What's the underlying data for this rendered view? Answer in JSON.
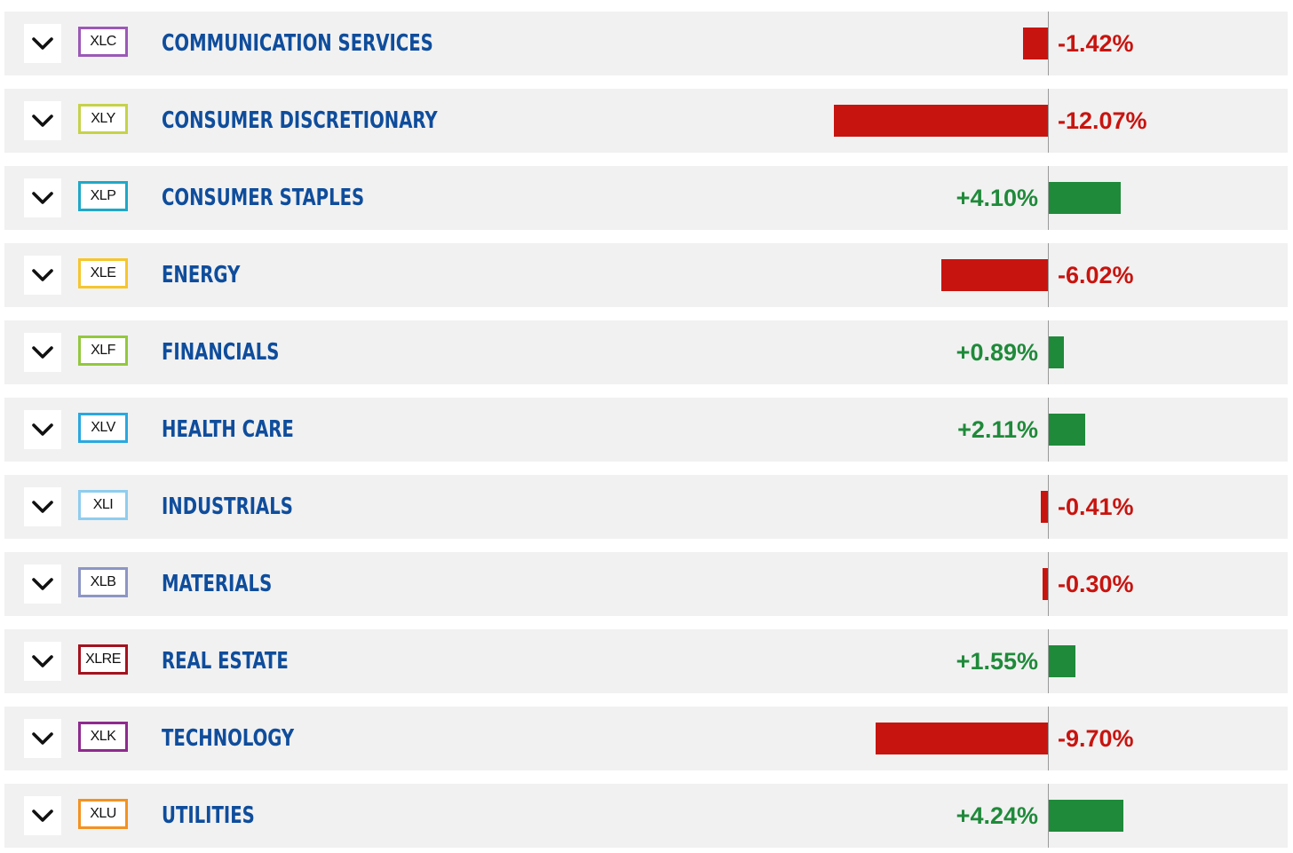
{
  "chart_data": {
    "type": "bar",
    "orientation": "horizontal",
    "categories": [
      "COMMUNICATION SERVICES",
      "CONSUMER DISCRETIONARY",
      "CONSUMER STAPLES",
      "ENERGY",
      "FINANCIALS",
      "HEALTH CARE",
      "INDUSTRIALS",
      "MATERIALS",
      "REAL ESTATE",
      "TECHNOLOGY",
      "UTILITIES"
    ],
    "tickers": [
      "XLC",
      "XLY",
      "XLP",
      "XLE",
      "XLF",
      "XLV",
      "XLI",
      "XLB",
      "XLRE",
      "XLK",
      "XLU"
    ],
    "values": [
      -1.42,
      -12.07,
      4.1,
      -6.02,
      0.89,
      2.11,
      -0.41,
      -0.3,
      1.55,
      -9.7,
      4.24
    ],
    "labels": [
      "-1.42%",
      "-12.07%",
      "+4.10%",
      "-6.02%",
      "+0.89%",
      "+2.11%",
      "-0.41%",
      "-0.30%",
      "+1.55%",
      "-9.70%",
      "+4.24%"
    ],
    "ticker_colors": [
      "#9b59b6",
      "#c5d24a",
      "#1fa8c8",
      "#f6c62d",
      "#93c83f",
      "#29a8e0",
      "#8fcdee",
      "#8d96c4",
      "#a4121e",
      "#8e2a8e",
      "#f39221"
    ],
    "positive_color": "#1f8a3a",
    "negative_color": "#c8140f",
    "sector_text_color": "#0f4d9c"
  },
  "icons": {
    "expand": "chevron-down-icon"
  }
}
